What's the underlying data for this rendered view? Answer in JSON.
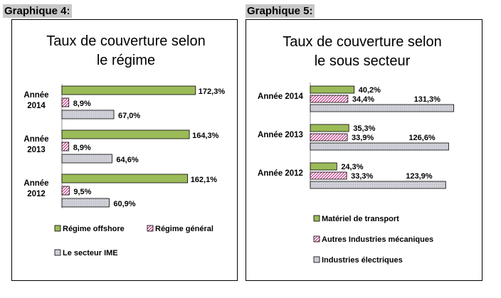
{
  "labels": {
    "left": "Graphique 4:",
    "right": "Graphique 5:"
  },
  "colors": {
    "green": "#9bbb59",
    "pink_hatch": "#c0287a",
    "grey": "#d0d0d8"
  },
  "chart_data": [
    {
      "type": "bar",
      "orientation": "horizontal",
      "title": [
        "Taux de couverture selon",
        "le régime"
      ],
      "categories": [
        [
          "Année",
          "2014"
        ],
        [
          "Année",
          "2013"
        ],
        [
          "Année",
          "2012"
        ]
      ],
      "series": [
        {
          "name": "Régime offshore",
          "values": [
            172.3,
            164.3,
            162.1
          ],
          "labels": [
            "172,3%",
            "164,3%",
            "162,1%"
          ],
          "pattern": "green"
        },
        {
          "name": "Régime général",
          "values": [
            8.9,
            8.9,
            9.5
          ],
          "labels": [
            "8,9%",
            "8,9%",
            "9,5%"
          ],
          "pattern": "hatch"
        },
        {
          "name": "Le secteur IME",
          "values": [
            67.0,
            64.6,
            60.9
          ],
          "labels": [
            "67,0%",
            "64,6%",
            "60,9%"
          ],
          "pattern": "grey"
        }
      ],
      "xlim": [
        0,
        200
      ],
      "grid": false,
      "legend": "bottom"
    },
    {
      "type": "bar",
      "orientation": "horizontal",
      "title": [
        "Taux de couverture selon",
        "le sous secteur"
      ],
      "categories": [
        [
          "Année 2014"
        ],
        [
          "Année 2013"
        ],
        [
          "Année 2012"
        ]
      ],
      "series": [
        {
          "name": "Matériel de transport",
          "values": [
            40.2,
            35.3,
            24.3
          ],
          "labels": [
            "40,2%",
            "35,3%",
            "24,3%"
          ],
          "pattern": "green"
        },
        {
          "name": "Autres Industries mécaniques",
          "values": [
            34.4,
            33.9,
            33.3
          ],
          "labels": [
            "34,4%",
            "33,9%",
            "33,3%"
          ],
          "pattern": "hatch"
        },
        {
          "name": "Industries électriques",
          "values": [
            131.3,
            126.6,
            123.9
          ],
          "labels": [
            "131,3%",
            "126,6%",
            "123,9%"
          ],
          "pattern": "grey"
        }
      ],
      "xlim": [
        0,
        140
      ],
      "grid": false,
      "legend": "bottom"
    }
  ]
}
